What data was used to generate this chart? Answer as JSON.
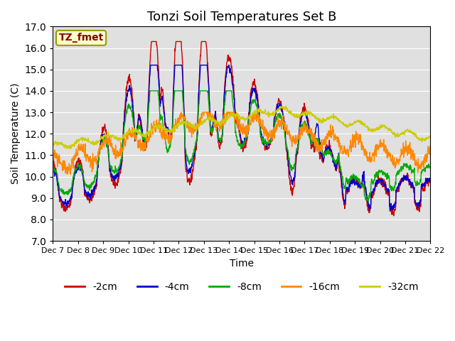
{
  "title": "Tonzi Soil Temperatures Set B",
  "xlabel": "Time",
  "ylabel": "Soil Temperature (C)",
  "ylim": [
    7.0,
    17.0
  ],
  "yticks": [
    7.0,
    8.0,
    9.0,
    10.0,
    11.0,
    12.0,
    13.0,
    14.0,
    15.0,
    16.0,
    17.0
  ],
  "xtick_labels": [
    "Dec 7",
    "Dec 8",
    "Dec 9",
    "Dec 10",
    "Dec 11",
    "Dec 12",
    "Dec 13",
    "Dec 14",
    "Dec 15",
    "Dec 16",
    "Dec 17",
    "Dec 18",
    "Dec 19",
    "Dec 20",
    "Dec 21",
    "Dec 22"
  ],
  "series_colors": [
    "#cc0000",
    "#0000cc",
    "#00aa00",
    "#ff8800",
    "#cccc00"
  ],
  "series_labels": [
    "-2cm",
    "-4cm",
    "-8cm",
    "-16cm",
    "-32cm"
  ],
  "bg_color": "#e0e0e0",
  "grid_color": "#ffffff",
  "annotation_text": "TZ_fmet",
  "annotation_bg": "#ffffcc",
  "annotation_border": "#999900",
  "annotation_text_color": "#880000",
  "title_fontsize": 13,
  "axis_fontsize": 10,
  "legend_fontsize": 10,
  "n_points": 1440
}
